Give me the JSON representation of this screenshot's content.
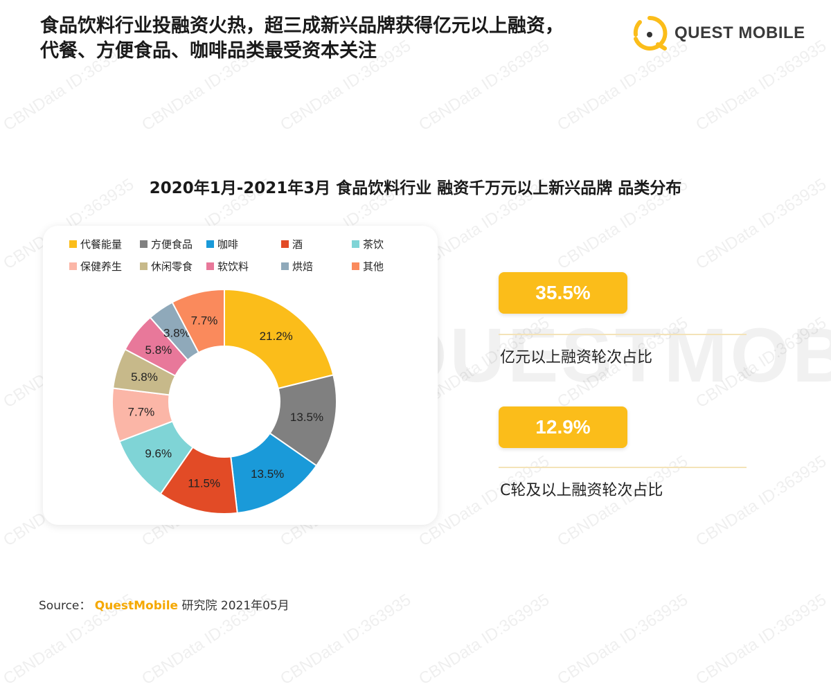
{
  "header": {
    "headline_line1": "食品饮料行业投融资火热，超三成新兴品牌获得亿元以上融资，",
    "headline_line2": "代餐、方便食品、咖啡品类最受资本关注"
  },
  "brand": {
    "name": "QUEST MOBILE",
    "color": "#fbbd1a"
  },
  "watermark": {
    "text": "CBNData ID:363935",
    "logo_text": "QUESTMOBILE"
  },
  "chart_data": {
    "type": "pie",
    "title": "2020年1月-2021年3月 食品饮料行业 融资千万元以上新兴品牌 品类分布",
    "donut": true,
    "legend_position": "top",
    "slices": [
      {
        "label": "代餐能量",
        "value": 21.2,
        "display": "21.2%",
        "color": "#fbbd1a"
      },
      {
        "label": "方便食品",
        "value": 13.5,
        "display": "13.5%",
        "color": "#808080"
      },
      {
        "label": "咖啡",
        "value": 13.5,
        "display": "13.5%",
        "color": "#1a9ad9"
      },
      {
        "label": "酒",
        "value": 11.5,
        "display": "11.5%",
        "color": "#e24b26"
      },
      {
        "label": "茶饮",
        "value": 9.6,
        "display": "9.6%",
        "color": "#7fd4d6"
      },
      {
        "label": "保健养生",
        "value": 7.7,
        "display": "7.7%",
        "color": "#fbb6a7"
      },
      {
        "label": "休闲零食",
        "value": 5.8,
        "display": "5.8%",
        "color": "#c7b98a"
      },
      {
        "label": "软饮料",
        "value": 5.8,
        "display": "5.8%",
        "color": "#e8789a"
      },
      {
        "label": "烘焙",
        "value": 3.8,
        "display": "3.8%",
        "color": "#8fa9ba"
      },
      {
        "label": "其他",
        "value": 7.7,
        "display": "7.7%",
        "color": "#fa8a5c"
      }
    ]
  },
  "stats": [
    {
      "value": "35.5%",
      "label": "亿元以上融资轮次占比"
    },
    {
      "value": "12.9%",
      "label": "C轮及以上融资轮次占比"
    }
  ],
  "source": {
    "prefix": "Source：",
    "brand": "QuestMobile",
    "suffix": "研究院 2021年05月"
  }
}
